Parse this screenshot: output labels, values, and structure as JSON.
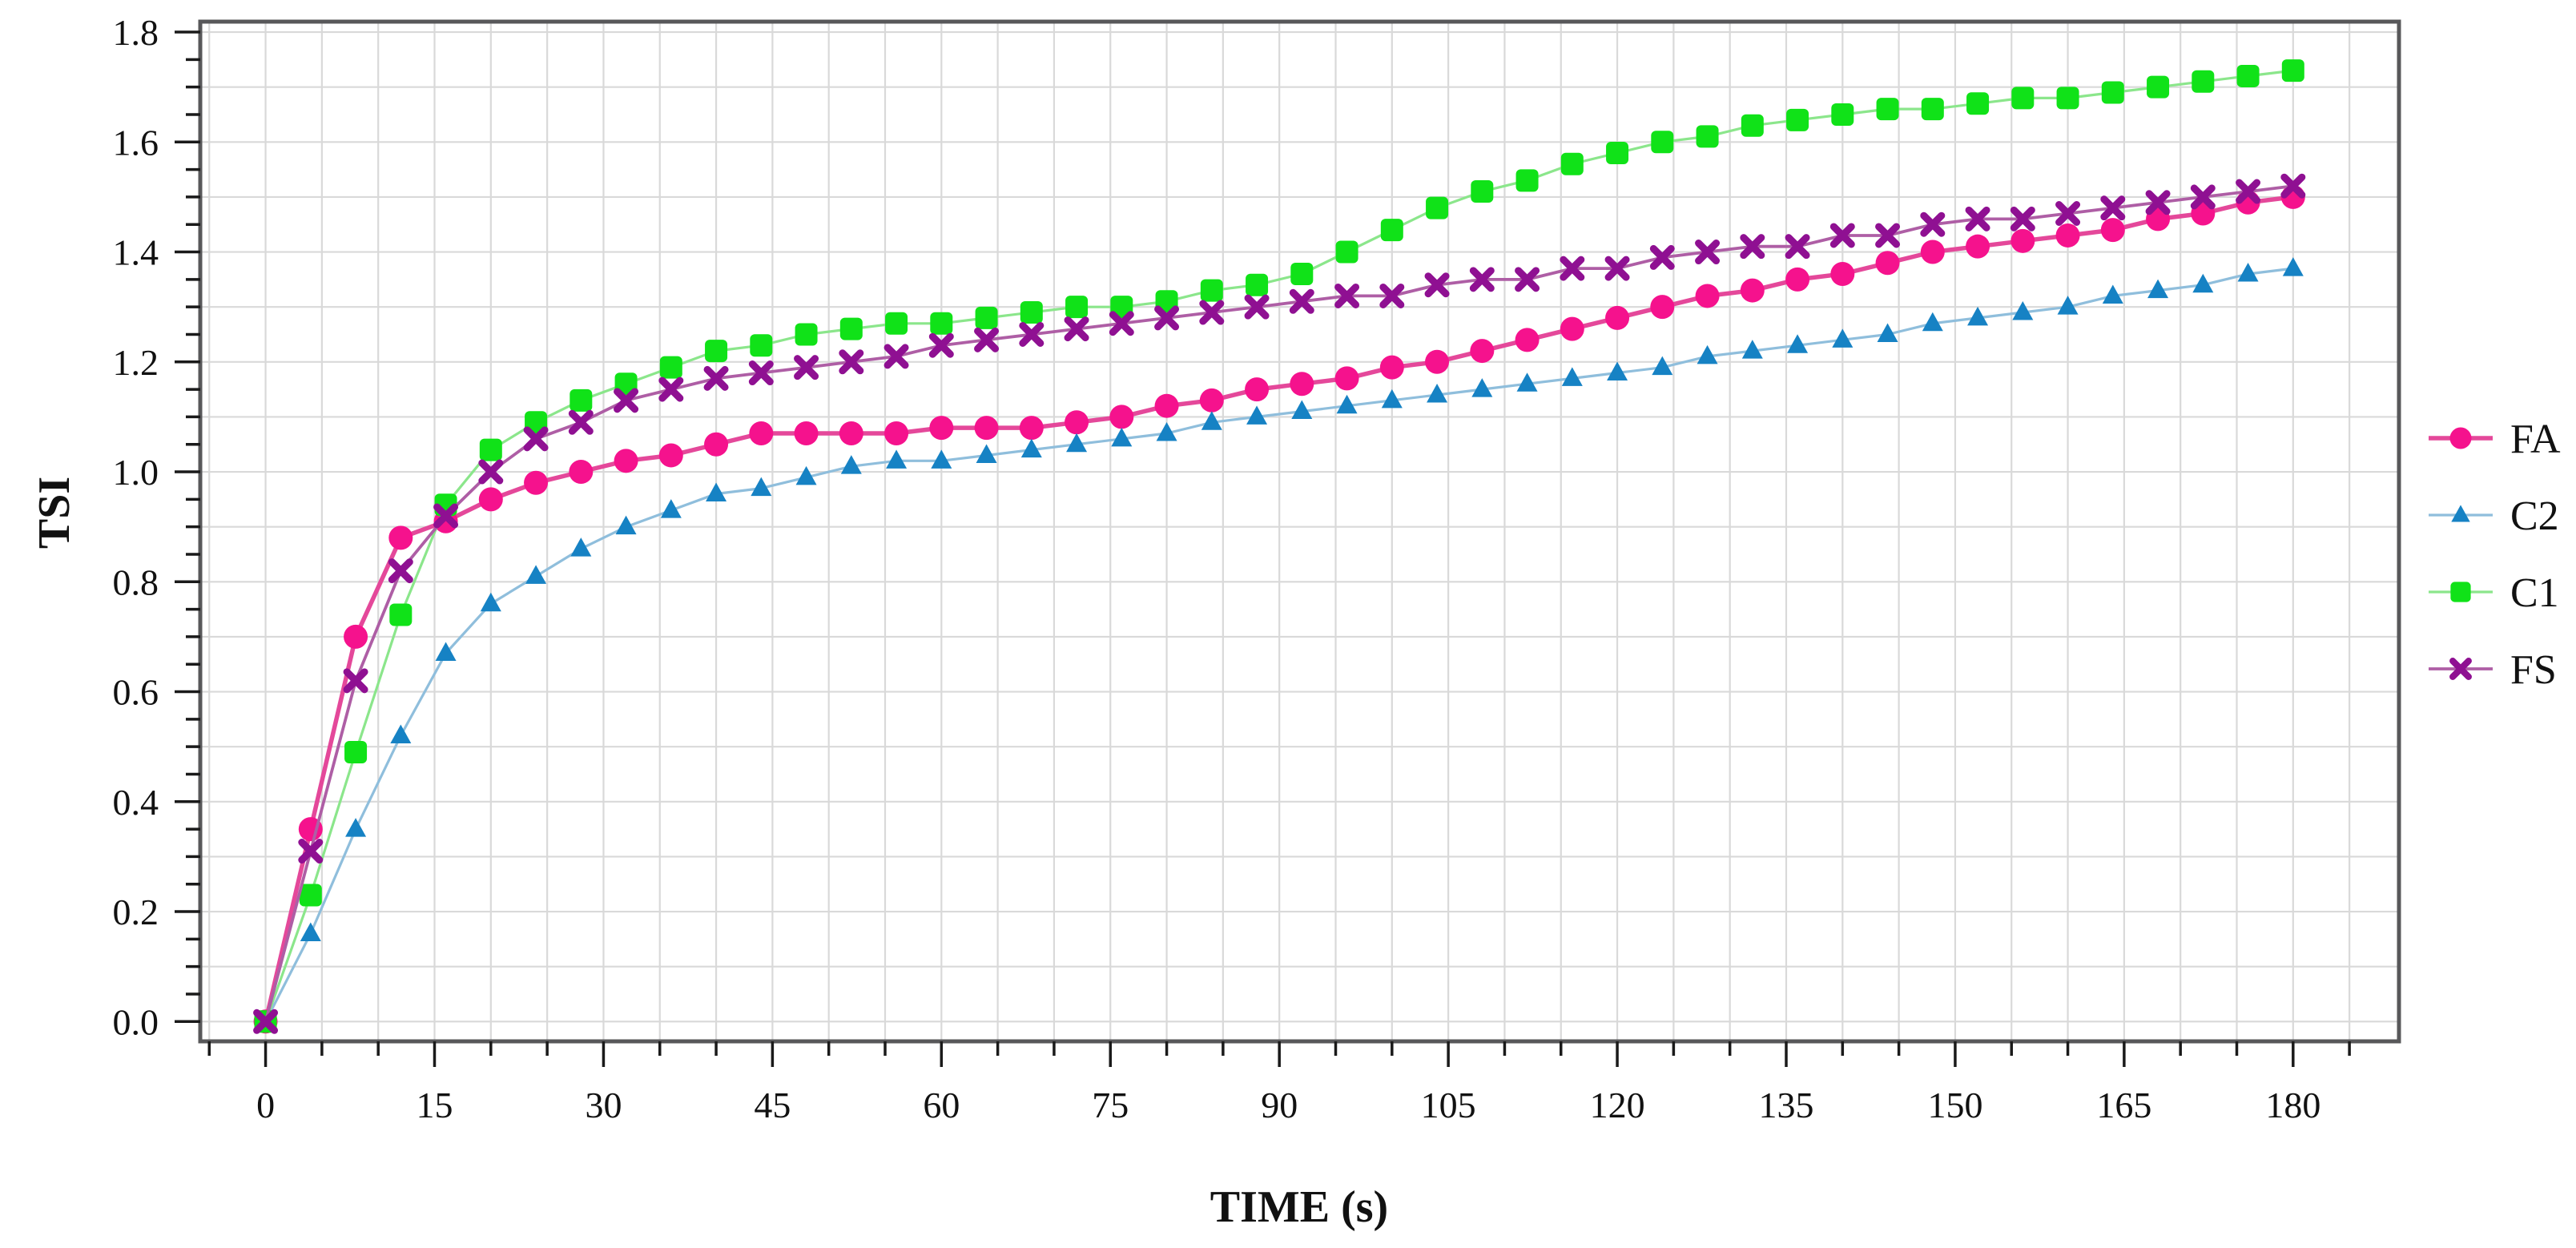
{
  "figure": {
    "background": "#ffffff",
    "border_color": "#58585a",
    "grid_color": "#d9d9d9",
    "tick_color": "#1a1a1a",
    "text_color": "#111111"
  },
  "chart_data": {
    "type": "line",
    "title": "",
    "xlabel": "TIME (s)",
    "ylabel": "TSI",
    "axes": {
      "xlim": [
        -5.8,
        189.4
      ],
      "ylim": [
        -0.036,
        1.819
      ],
      "x_tick_values": [
        0,
        15,
        30,
        45,
        60,
        75,
        90,
        105,
        120,
        135,
        150,
        165,
        180
      ],
      "x_tick_labels": [
        "0",
        "15",
        "30",
        "45",
        "60",
        "75",
        "90",
        "105",
        "120",
        "135",
        "150",
        "165",
        "180"
      ],
      "x_minor_step": 5,
      "y_tick_values": [
        0.0,
        0.2,
        0.4,
        0.6,
        0.8,
        1.0,
        1.2,
        1.4,
        1.6,
        1.8
      ],
      "y_tick_labels": [
        "0.0",
        "0.2",
        "0.4",
        "0.6",
        "0.8",
        "1.0",
        "1.2",
        "1.4",
        "1.6",
        "1.8"
      ],
      "y_minor_step": 0.05,
      "grid_x_step": 5,
      "grid_y_step": 0.1,
      "grid": true
    },
    "legend_position": "right",
    "x": [
      0,
      4,
      8,
      12,
      16,
      20,
      24,
      28,
      32,
      36,
      40,
      44,
      48,
      52,
      56,
      60,
      64,
      68,
      72,
      76,
      80,
      84,
      88,
      92,
      96,
      100,
      104,
      108,
      112,
      116,
      120,
      124,
      128,
      132,
      136,
      140,
      144,
      148,
      152,
      156,
      160,
      164,
      168,
      172,
      176,
      180
    ],
    "series": [
      {
        "name": "FA",
        "marker": "circle",
        "marker_color": "#f5128d",
        "line_color": "#e4489a",
        "line_width": 5.5,
        "values": [
          0.0,
          0.35,
          0.7,
          0.88,
          0.91,
          0.95,
          0.98,
          1.0,
          1.02,
          1.03,
          1.05,
          1.07,
          1.07,
          1.07,
          1.07,
          1.08,
          1.08,
          1.08,
          1.09,
          1.1,
          1.12,
          1.13,
          1.15,
          1.16,
          1.17,
          1.19,
          1.2,
          1.22,
          1.24,
          1.26,
          1.28,
          1.3,
          1.32,
          1.33,
          1.35,
          1.36,
          1.38,
          1.4,
          1.41,
          1.42,
          1.43,
          1.44,
          1.46,
          1.47,
          1.49,
          1.5
        ]
      },
      {
        "name": "C2",
        "marker": "triangle",
        "marker_color": "#1682c4",
        "line_color": "#8fbedc",
        "line_width": 3.2,
        "values": [
          0.0,
          0.16,
          0.35,
          0.52,
          0.67,
          0.76,
          0.81,
          0.86,
          0.9,
          0.93,
          0.96,
          0.97,
          0.99,
          1.01,
          1.02,
          1.02,
          1.03,
          1.04,
          1.05,
          1.06,
          1.07,
          1.09,
          1.1,
          1.11,
          1.12,
          1.13,
          1.14,
          1.15,
          1.16,
          1.17,
          1.18,
          1.19,
          1.21,
          1.22,
          1.23,
          1.24,
          1.25,
          1.27,
          1.28,
          1.29,
          1.3,
          1.32,
          1.33,
          1.34,
          1.36,
          1.37
        ]
      },
      {
        "name": "C1",
        "marker": "square",
        "marker_color": "#10e218",
        "line_color": "#8be68b",
        "line_width": 3.2,
        "values": [
          0.0,
          0.23,
          0.49,
          0.74,
          0.94,
          1.04,
          1.09,
          1.13,
          1.16,
          1.19,
          1.22,
          1.23,
          1.25,
          1.26,
          1.27,
          1.27,
          1.28,
          1.29,
          1.3,
          1.3,
          1.31,
          1.33,
          1.34,
          1.36,
          1.4,
          1.44,
          1.48,
          1.51,
          1.53,
          1.56,
          1.58,
          1.6,
          1.61,
          1.63,
          1.64,
          1.65,
          1.66,
          1.66,
          1.67,
          1.68,
          1.68,
          1.69,
          1.7,
          1.71,
          1.72,
          1.73
        ]
      },
      {
        "name": "FS",
        "marker": "x",
        "marker_color": "#8f1092",
        "line_color": "#ae5ea5",
        "line_width": 3.8,
        "values": [
          0.0,
          0.31,
          0.62,
          0.82,
          0.92,
          1.0,
          1.06,
          1.09,
          1.13,
          1.15,
          1.17,
          1.18,
          1.19,
          1.2,
          1.21,
          1.23,
          1.24,
          1.25,
          1.26,
          1.27,
          1.28,
          1.29,
          1.3,
          1.31,
          1.32,
          1.32,
          1.34,
          1.35,
          1.35,
          1.37,
          1.37,
          1.39,
          1.4,
          1.41,
          1.41,
          1.43,
          1.43,
          1.45,
          1.46,
          1.46,
          1.47,
          1.48,
          1.49,
          1.5,
          1.51,
          1.52
        ]
      }
    ]
  }
}
